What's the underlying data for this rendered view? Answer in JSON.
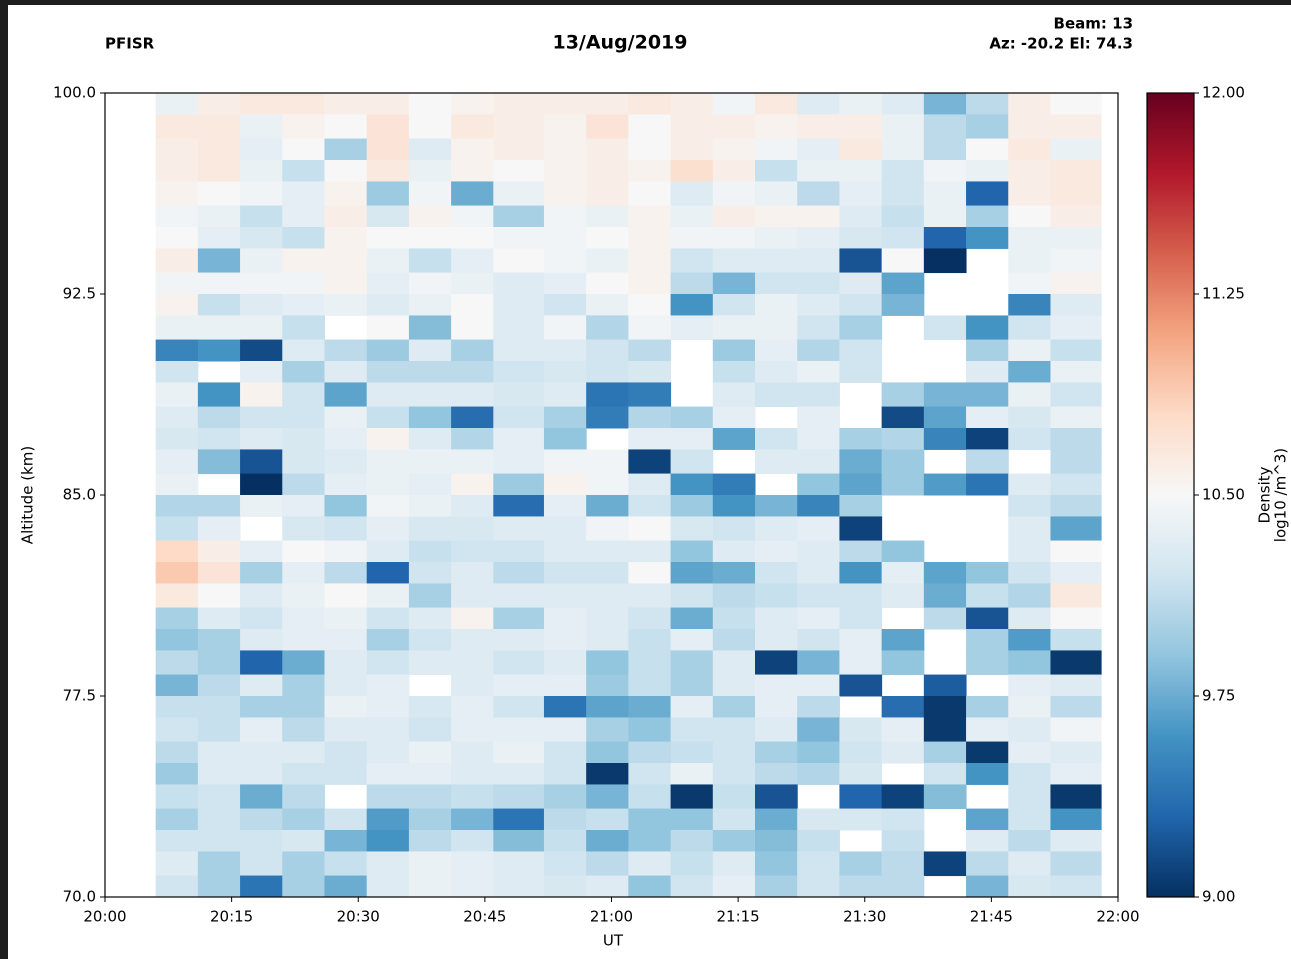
{
  "chart_data": {
    "type": "heatmap",
    "title": "13/Aug/2019",
    "site": "PFISR",
    "beam": "Beam: 13",
    "pointing": "Az: -20.2 El: 74.3",
    "x_label": "UT",
    "y_label": "Altitude (km)",
    "colorbar_label": [
      "Density",
      "log10 /m^3)"
    ],
    "xlim": [
      "20:00",
      "22:00"
    ],
    "xticks": [
      "20:00",
      "20:15",
      "20:30",
      "20:45",
      "21:00",
      "21:15",
      "21:30",
      "21:45",
      "22:00"
    ],
    "ylim": [
      70,
      100
    ],
    "yticks": [
      {
        "value": 70,
        "label": "70.0"
      },
      {
        "value": 77.5,
        "label": "77.5"
      },
      {
        "value": 85,
        "label": "85.0"
      },
      {
        "value": 92.5,
        "label": "92.5"
      },
      {
        "value": 100,
        "label": "100.0"
      }
    ],
    "clim": [
      9,
      12
    ],
    "cticks": [
      {
        "value": 9,
        "label": "9.00"
      },
      {
        "value": 9.75,
        "label": "9.75"
      },
      {
        "value": 10.5,
        "label": "10.50"
      },
      {
        "value": 11.25,
        "label": "11.25"
      },
      {
        "value": 12,
        "label": "12.00"
      }
    ],
    "colormap": [
      "#053061",
      "#2166ac",
      "#4393c3",
      "#92c5de",
      "#d1e5f0",
      "#f7f7f7",
      "#fddbc7",
      "#f4a582",
      "#d6604d",
      "#b2182b",
      "#67001f"
    ],
    "x_edges": [
      "20:06",
      "20:11",
      "20:16",
      "20:21",
      "20:26",
      "20:31",
      "20:36",
      "20:41",
      "20:46",
      "20:52",
      "20:57",
      "21:02",
      "21:07",
      "21:12",
      "21:17",
      "21:22",
      "21:27",
      "21:32",
      "21:37",
      "21:42",
      "21:47",
      "21:52",
      "21:58"
    ],
    "y_edges": [
      100,
      99.2,
      98.3,
      97.5,
      96.7,
      95.8,
      95,
      94.2,
      93.3,
      92.5,
      91.7,
      90.8,
      90,
      89.2,
      88.3,
      87.5,
      86.7,
      85.8,
      85,
      84.2,
      83.3,
      82.5,
      81.7,
      80.8,
      80,
      79.2,
      78.3,
      77.5,
      76.7,
      75.8,
      75,
      74.2,
      73.3,
      72.5,
      71.7,
      70.8,
      70
    ],
    "z": [
      [
        10.4,
        10.6,
        10.65,
        10.65,
        10.6,
        10.6,
        10.5,
        10.55,
        10.6,
        10.6,
        10.6,
        10.65,
        10.6,
        10.45,
        10.65,
        10.3,
        10.4,
        10.3,
        9.8,
        10.1,
        10.6,
        10.5
      ],
      [
        10.65,
        10.65,
        10.4,
        10.55,
        10.5,
        10.7,
        10.5,
        10.65,
        10.6,
        10.55,
        10.7,
        10.5,
        10.6,
        10.6,
        10.55,
        10.6,
        10.6,
        10.4,
        10.1,
        10.0,
        10.6,
        10.6
      ],
      [
        10.6,
        10.65,
        10.35,
        10.5,
        10.0,
        10.7,
        10.3,
        10.55,
        10.6,
        10.55,
        10.6,
        10.5,
        10.6,
        10.55,
        10.45,
        10.35,
        10.65,
        10.4,
        10.1,
        10.5,
        10.65,
        10.4
      ],
      [
        10.6,
        10.65,
        10.4,
        10.15,
        10.5,
        10.65,
        10.4,
        10.55,
        10.5,
        10.55,
        10.6,
        10.55,
        10.75,
        10.6,
        10.15,
        10.4,
        10.4,
        10.2,
        10.45,
        10.4,
        10.6,
        10.65
      ],
      [
        10.55,
        10.5,
        10.45,
        10.35,
        10.55,
        9.95,
        10.45,
        9.75,
        10.4,
        10.55,
        10.6,
        10.5,
        10.3,
        10.45,
        10.4,
        10.1,
        10.35,
        10.2,
        10.4,
        9.3,
        10.6,
        10.65
      ],
      [
        10.45,
        10.4,
        10.15,
        10.35,
        10.6,
        10.25,
        10.55,
        10.45,
        10.0,
        10.45,
        10.4,
        10.55,
        10.4,
        10.6,
        10.55,
        10.55,
        10.3,
        10.15,
        10.4,
        10.0,
        10.5,
        10.6
      ],
      [
        10.5,
        10.35,
        10.25,
        10.15,
        10.55,
        10.5,
        10.5,
        10.5,
        10.45,
        10.45,
        10.5,
        10.55,
        10.45,
        10.45,
        10.4,
        10.35,
        10.25,
        10.2,
        9.3,
        9.6,
        10.4,
        10.4
      ],
      [
        10.6,
        9.8,
        10.4,
        10.55,
        10.55,
        10.4,
        10.15,
        10.35,
        10.5,
        10.45,
        10.4,
        10.55,
        10.2,
        10.3,
        10.3,
        10.3,
        9.2,
        10.5,
        9.0,
        null,
        10.4,
        10.45
      ],
      [
        10.45,
        10.45,
        10.45,
        10.45,
        10.55,
        10.35,
        10.45,
        10.4,
        10.3,
        10.35,
        10.5,
        10.55,
        10.1,
        9.8,
        10.2,
        10.2,
        10.3,
        9.7,
        null,
        null,
        10.45,
        10.55
      ],
      [
        10.55,
        10.15,
        10.3,
        10.35,
        10.4,
        10.3,
        10.4,
        10.5,
        10.3,
        10.2,
        10.4,
        10.5,
        9.6,
        10.2,
        10.4,
        10.3,
        10.2,
        9.8,
        null,
        null,
        9.5,
        10.3
      ],
      [
        10.4,
        10.4,
        10.4,
        10.15,
        null,
        10.5,
        9.85,
        10.5,
        10.3,
        10.45,
        10.05,
        10.45,
        10.35,
        10.4,
        10.4,
        10.2,
        10.0,
        null,
        10.2,
        9.6,
        10.2,
        10.35
      ],
      [
        9.5,
        9.6,
        9.15,
        10.3,
        10.1,
        9.95,
        10.3,
        10.0,
        10.3,
        10.3,
        10.2,
        10.1,
        null,
        9.95,
        10.35,
        10.05,
        10.2,
        null,
        null,
        10.0,
        10.4,
        10.15
      ],
      [
        10.2,
        null,
        10.35,
        10.0,
        10.3,
        10.1,
        10.1,
        10.1,
        10.2,
        10.25,
        10.2,
        10.25,
        null,
        10.15,
        10.3,
        10.4,
        10.2,
        null,
        null,
        10.3,
        9.75,
        10.4
      ],
      [
        10.4,
        9.6,
        10.55,
        10.2,
        9.7,
        10.3,
        10.3,
        10.3,
        10.25,
        10.3,
        9.4,
        9.45,
        null,
        10.3,
        10.2,
        10.2,
        null,
        10.0,
        9.8,
        9.8,
        10.4,
        10.2
      ],
      [
        10.3,
        10.1,
        10.2,
        10.2,
        10.4,
        10.15,
        9.9,
        9.35,
        10.2,
        10.0,
        9.45,
        10.05,
        10.0,
        10.35,
        null,
        10.35,
        null,
        9.15,
        9.7,
        10.35,
        10.25,
        10.4
      ],
      [
        10.25,
        10.2,
        10.3,
        10.25,
        10.35,
        10.55,
        10.3,
        10.05,
        10.35,
        9.9,
        null,
        10.35,
        10.35,
        9.7,
        10.2,
        10.35,
        10.0,
        10.05,
        9.5,
        9.1,
        10.2,
        10.1
      ],
      [
        10.35,
        9.85,
        9.2,
        10.25,
        10.3,
        10.4,
        10.4,
        10.4,
        10.35,
        10.45,
        10.45,
        9.1,
        10.2,
        null,
        10.3,
        10.3,
        9.75,
        9.95,
        null,
        10.1,
        null,
        10.1
      ],
      [
        10.4,
        null,
        9.0,
        10.1,
        10.35,
        10.4,
        10.35,
        10.55,
        9.95,
        10.55,
        10.45,
        10.3,
        9.6,
        9.45,
        null,
        9.9,
        9.7,
        9.95,
        9.65,
        9.4,
        10.3,
        10.2
      ],
      [
        10.05,
        10.05,
        10.4,
        10.35,
        9.9,
        10.45,
        10.4,
        10.3,
        9.35,
        10.35,
        9.75,
        10.2,
        9.95,
        9.6,
        9.8,
        9.5,
        10.0,
        null,
        null,
        null,
        10.2,
        10.1
      ],
      [
        10.15,
        10.35,
        null,
        10.25,
        10.2,
        10.35,
        10.25,
        10.25,
        10.3,
        10.3,
        10.45,
        10.5,
        10.25,
        10.2,
        10.3,
        10.35,
        9.1,
        null,
        null,
        null,
        10.3,
        9.7
      ],
      [
        10.8,
        10.6,
        10.35,
        10.5,
        10.45,
        10.3,
        10.15,
        10.2,
        10.2,
        10.3,
        10.3,
        10.3,
        9.9,
        10.3,
        10.35,
        10.3,
        10.1,
        9.9,
        null,
        null,
        10.3,
        10.5
      ],
      [
        10.9,
        10.7,
        10.0,
        10.35,
        10.1,
        9.3,
        10.2,
        10.3,
        10.1,
        10.2,
        10.2,
        10.5,
        9.7,
        9.75,
        10.2,
        10.3,
        9.6,
        10.35,
        9.7,
        9.9,
        10.2,
        10.35
      ],
      [
        10.65,
        10.5,
        10.3,
        10.4,
        10.5,
        10.4,
        10.0,
        10.3,
        10.3,
        10.3,
        10.3,
        10.3,
        10.2,
        10.1,
        10.15,
        10.2,
        10.2,
        10.3,
        9.75,
        10.15,
        10.05,
        10.65
      ],
      [
        10.0,
        10.3,
        10.2,
        10.35,
        10.4,
        10.2,
        10.3,
        10.55,
        10.0,
        10.35,
        10.3,
        10.2,
        9.75,
        10.15,
        10.3,
        10.35,
        10.2,
        null,
        10.1,
        9.2,
        10.3,
        10.5
      ],
      [
        9.9,
        10.0,
        10.3,
        10.35,
        10.35,
        10.0,
        10.2,
        10.3,
        10.3,
        10.35,
        10.3,
        10.15,
        10.35,
        10.1,
        10.3,
        10.2,
        10.35,
        9.7,
        null,
        10.0,
        9.65,
        10.15
      ],
      [
        10.1,
        10.0,
        9.3,
        9.75,
        10.3,
        10.2,
        10.3,
        10.3,
        10.2,
        10.3,
        9.9,
        10.15,
        10.0,
        10.3,
        9.1,
        9.8,
        10.35,
        9.9,
        null,
        10.0,
        9.9,
        9.05
      ],
      [
        9.8,
        10.1,
        10.3,
        10.0,
        10.3,
        10.35,
        null,
        10.3,
        10.35,
        10.35,
        9.95,
        10.15,
        10.0,
        10.3,
        10.35,
        10.35,
        9.2,
        null,
        9.25,
        null,
        10.35,
        10.3
      ],
      [
        10.15,
        10.15,
        10.0,
        10.0,
        10.4,
        10.35,
        10.25,
        10.35,
        10.2,
        9.4,
        9.7,
        9.75,
        10.35,
        10.0,
        10.35,
        10.1,
        null,
        9.35,
        9.05,
        10.0,
        10.4,
        10.1
      ],
      [
        10.2,
        10.15,
        10.35,
        10.1,
        10.3,
        10.3,
        10.2,
        10.35,
        10.35,
        10.35,
        10.0,
        9.9,
        10.2,
        10.2,
        10.3,
        9.8,
        10.25,
        10.35,
        9.05,
        10.35,
        10.3,
        10.45
      ],
      [
        10.1,
        10.3,
        10.3,
        10.3,
        10.2,
        10.3,
        10.4,
        10.3,
        10.4,
        10.2,
        9.9,
        10.1,
        10.15,
        10.2,
        10.0,
        9.9,
        10.2,
        10.3,
        10.0,
        9.05,
        10.35,
        10.3
      ],
      [
        9.95,
        10.3,
        10.3,
        10.2,
        10.2,
        10.35,
        10.35,
        10.3,
        10.3,
        10.2,
        9.05,
        10.2,
        10.4,
        10.2,
        10.1,
        10.05,
        10.25,
        null,
        10.2,
        9.6,
        10.2,
        10.35
      ],
      [
        10.15,
        10.2,
        9.75,
        10.1,
        null,
        10.1,
        10.1,
        10.15,
        10.1,
        10.0,
        9.8,
        10.15,
        9.05,
        10.15,
        9.2,
        null,
        9.3,
        9.1,
        9.85,
        null,
        10.2,
        9.05
      ],
      [
        10.0,
        10.2,
        10.1,
        10.0,
        10.2,
        9.65,
        10.0,
        9.8,
        9.4,
        10.1,
        10.15,
        9.9,
        9.9,
        10.2,
        9.75,
        10.25,
        10.25,
        10.2,
        null,
        9.7,
        10.2,
        9.6
      ],
      [
        10.2,
        10.2,
        10.2,
        10.25,
        9.8,
        9.6,
        10.1,
        10.2,
        9.85,
        10.15,
        9.75,
        9.9,
        10.1,
        9.95,
        9.85,
        10.15,
        null,
        10.15,
        null,
        10.3,
        10.1,
        10.3
      ],
      [
        10.3,
        10.0,
        10.2,
        10.0,
        10.15,
        10.3,
        10.4,
        10.35,
        10.3,
        10.2,
        10.1,
        10.3,
        10.15,
        10.3,
        9.9,
        10.2,
        10.0,
        10.1,
        9.1,
        10.1,
        10.3,
        10.1
      ],
      [
        10.2,
        10.0,
        9.4,
        10.0,
        9.75,
        10.3,
        10.4,
        10.35,
        10.3,
        10.25,
        10.3,
        9.9,
        10.2,
        10.35,
        10.0,
        10.2,
        10.1,
        10.1,
        null,
        9.8,
        10.25,
        10.2
      ]
    ]
  }
}
